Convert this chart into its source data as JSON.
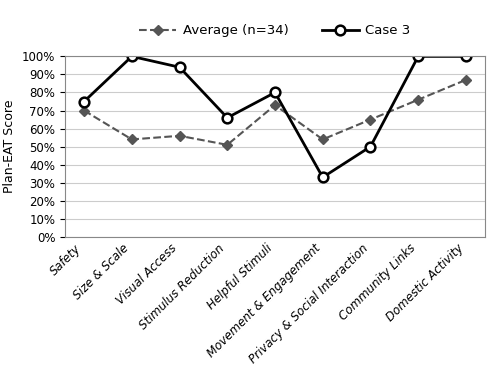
{
  "categories": [
    "Safety",
    "Size & Scale",
    "Visual Access",
    "Stimulus Reduction",
    "Helpful Stimuli",
    "Movement & Engagement",
    "Privacy & Social Interaction",
    "Community Links",
    "Domestic Activity"
  ],
  "average": [
    0.7,
    0.54,
    0.56,
    0.51,
    0.73,
    0.54,
    0.65,
    0.76,
    0.87
  ],
  "case3": [
    0.75,
    1.0,
    0.94,
    0.66,
    0.8,
    0.33,
    0.5,
    1.0,
    1.0
  ],
  "avg_label": "Average (n=34)",
  "case3_label": "Case 3",
  "ylabel": "Plan-EAT Score",
  "ylim": [
    0.0,
    1.0
  ],
  "yticks": [
    0.0,
    0.1,
    0.2,
    0.3,
    0.4,
    0.5,
    0.6,
    0.7,
    0.8,
    0.9,
    1.0
  ],
  "avg_color": "#555555",
  "case3_color": "#000000",
  "background_color": "#ffffff",
  "grid_color": "#cccccc",
  "legend_fontsize": 9.5,
  "ylabel_fontsize": 9,
  "tick_fontsize": 8.5
}
